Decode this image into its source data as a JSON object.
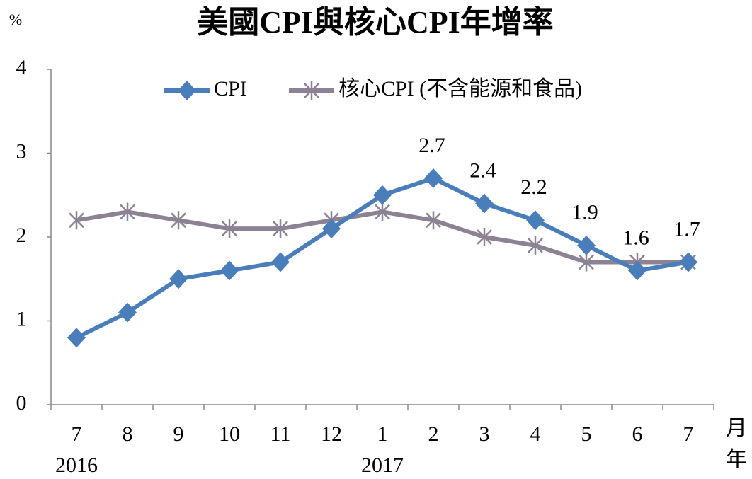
{
  "chart_data": {
    "type": "line",
    "title": "美國CPI與核心CPI年增率",
    "y_unit": "%",
    "x_unit_month": "月",
    "x_unit_year": "年",
    "categories": [
      "7",
      "8",
      "9",
      "10",
      "11",
      "12",
      "1",
      "2",
      "3",
      "4",
      "5",
      "6",
      "7"
    ],
    "year_labels": [
      "2016",
      null,
      null,
      null,
      null,
      null,
      "2017",
      null,
      null,
      null,
      null,
      null,
      null
    ],
    "series": [
      {
        "name": "CPI",
        "color": "#4a7ebb",
        "marker": "diamond",
        "values": [
          0.8,
          1.1,
          1.5,
          1.6,
          1.7,
          2.1,
          2.5,
          2.7,
          2.4,
          2.2,
          1.9,
          1.6,
          1.7
        ],
        "value_labels": [
          null,
          null,
          null,
          null,
          null,
          null,
          null,
          "2.7",
          "2.4",
          "2.2",
          "1.9",
          "1.6",
          "1.7"
        ]
      },
      {
        "name": "核心CPI (不含能源和食品)",
        "color": "#8c8294",
        "marker": "star",
        "values": [
          2.2,
          2.3,
          2.2,
          2.1,
          2.1,
          2.2,
          2.3,
          2.2,
          2.0,
          1.9,
          1.7,
          1.7,
          1.7
        ]
      }
    ],
    "ylim": [
      0,
      4
    ],
    "yticks": [
      0,
      1,
      2,
      3,
      4
    ],
    "grid": false
  }
}
